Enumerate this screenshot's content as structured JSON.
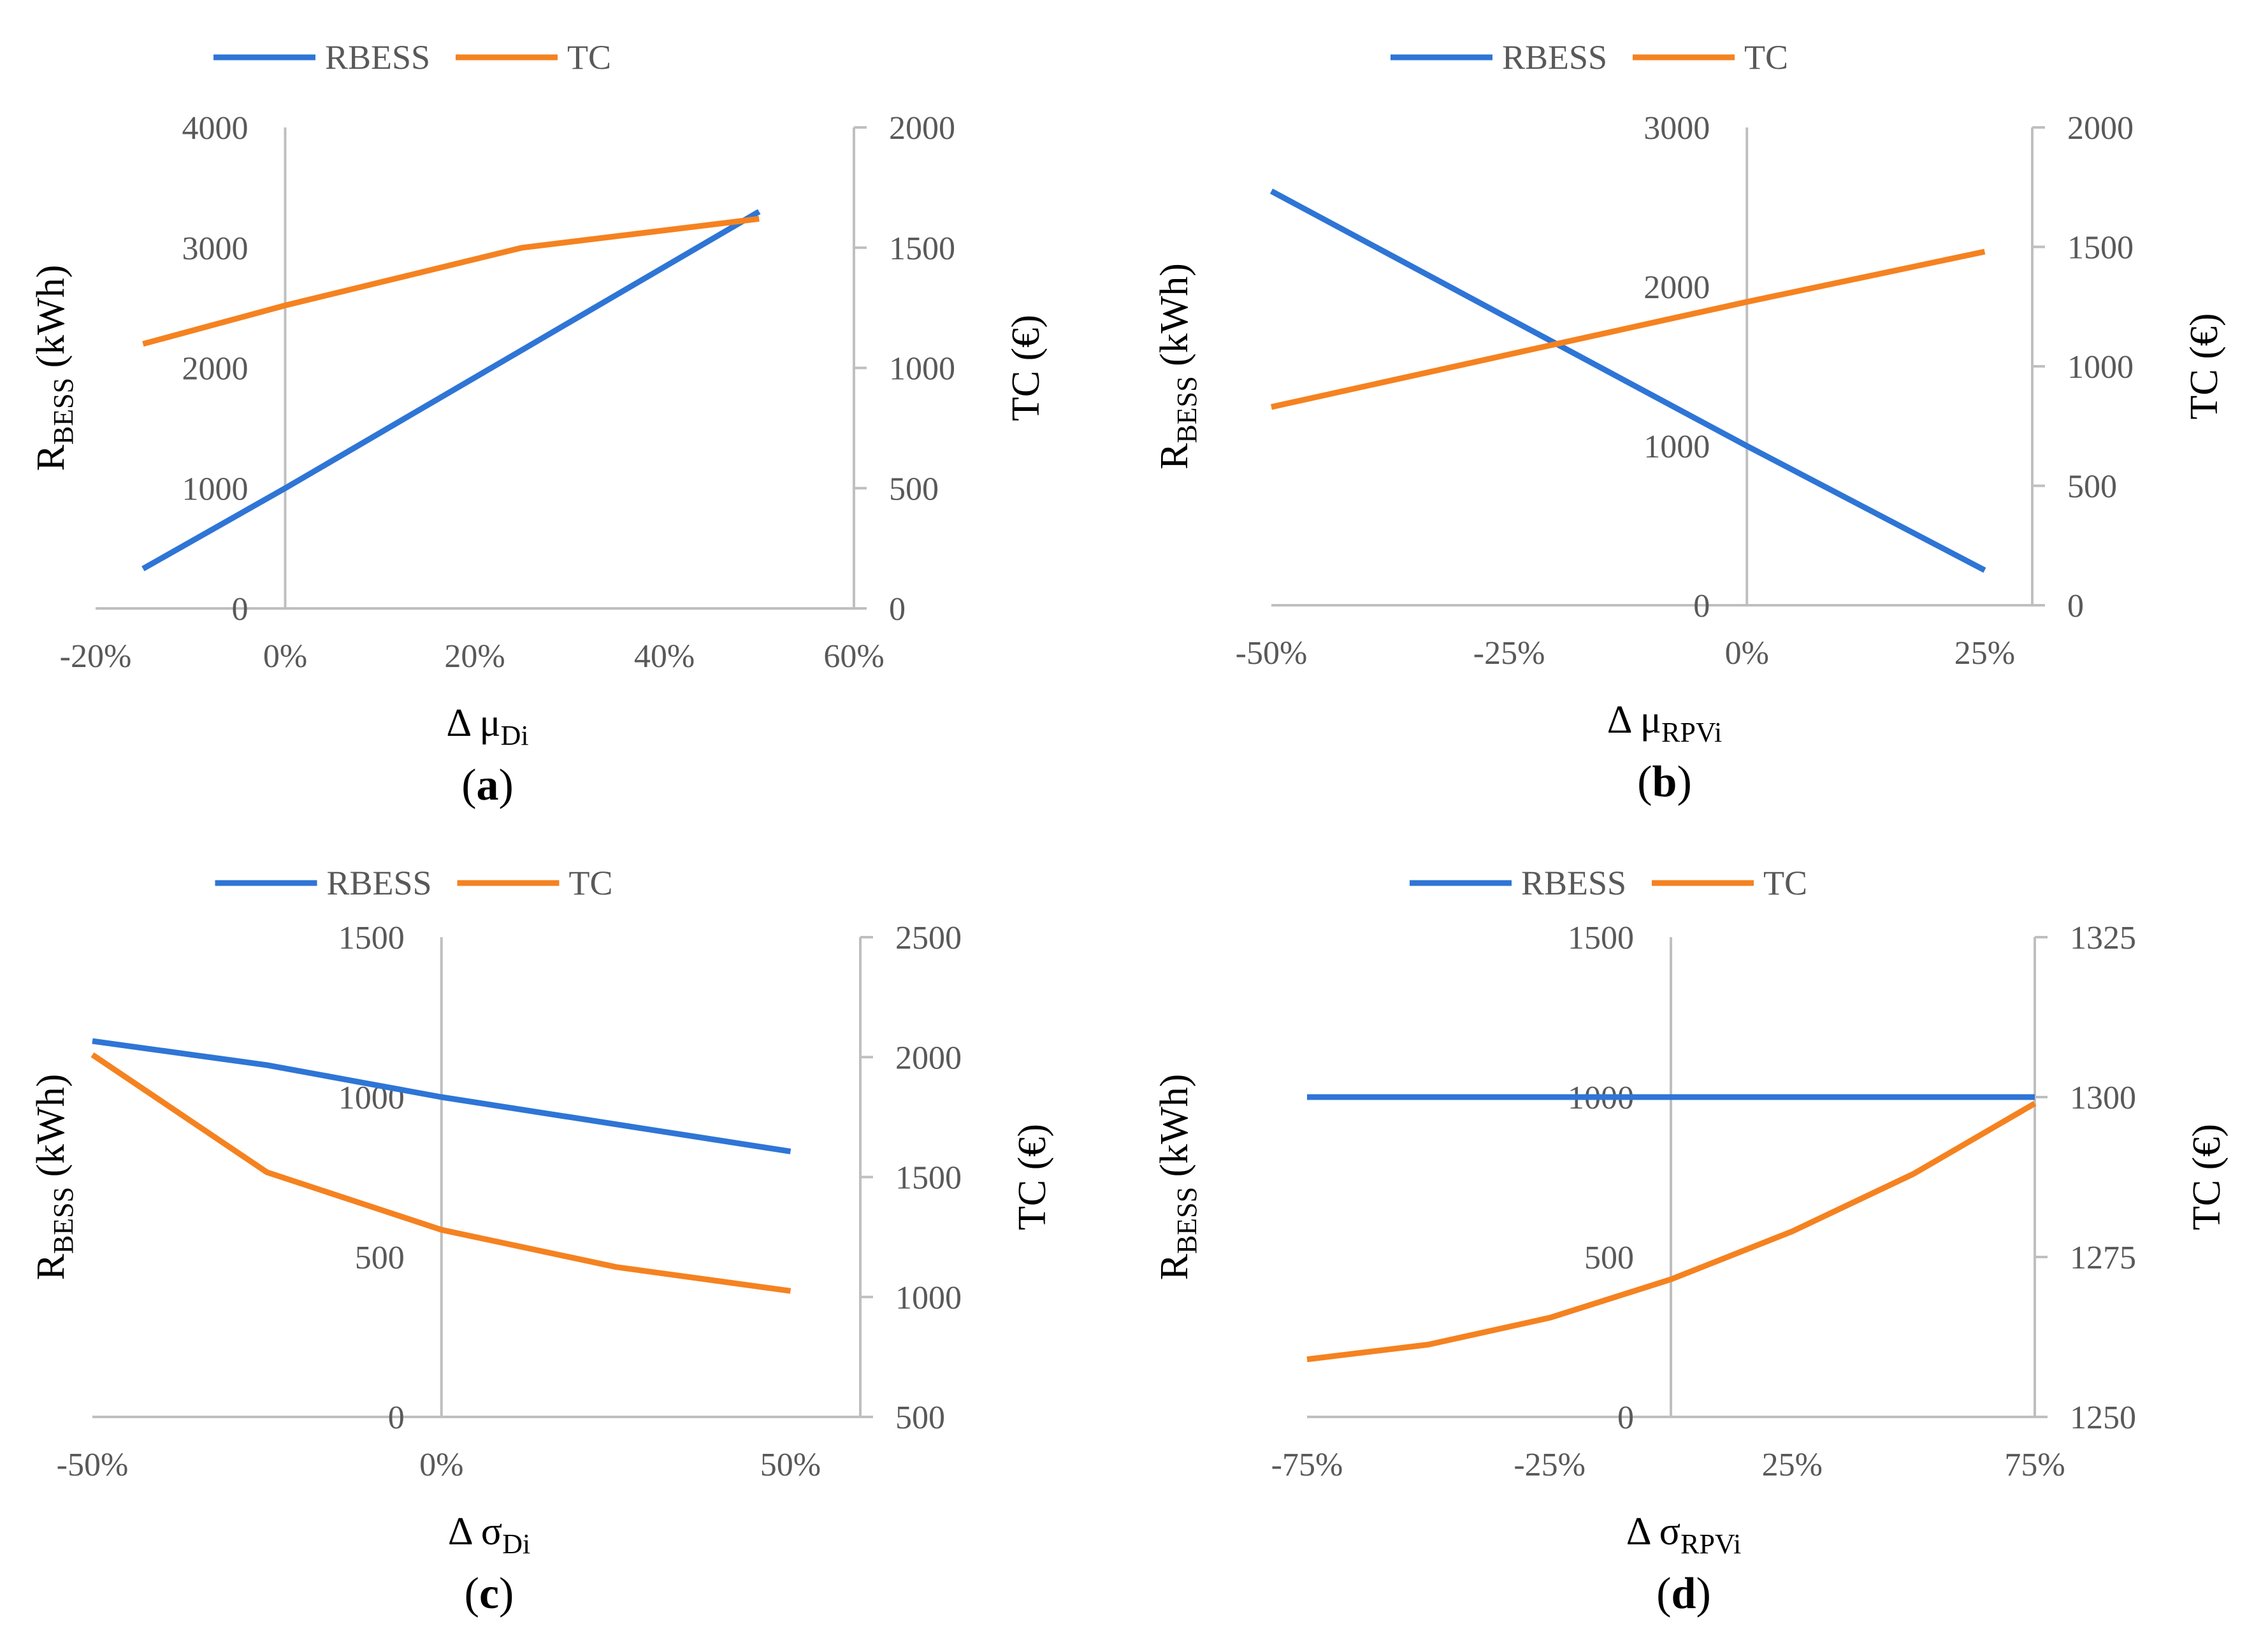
{
  "colors": {
    "rbess": "#2E75D6",
    "tc": "#F58220",
    "axis": "#BFBFBF",
    "text": "#595959"
  },
  "chart_data": [
    {
      "id": "a",
      "type": "line",
      "caption": "a",
      "legend": [
        "RBESS",
        "TC"
      ],
      "xlabel": {
        "prefix": "Δ μ",
        "sub": "Di"
      },
      "ylabel_left": {
        "main": "R",
        "sub": "BESS",
        "suffix": " (kWh)"
      },
      "ylabel_right": "TC (€)",
      "x_range": [
        -0.2,
        0.6
      ],
      "x_ticks": [
        -0.2,
        0,
        0.2,
        0.4,
        0.6
      ],
      "x_tick_labels": [
        "-20%",
        "0%",
        "20%",
        "40%",
        "60%"
      ],
      "left_ylim": [
        0,
        4000
      ],
      "left_ticks": [
        0,
        1000,
        2000,
        3000,
        4000
      ],
      "right_ylim": [
        0,
        2000
      ],
      "right_ticks": [
        0,
        500,
        1000,
        1500,
        2000
      ],
      "series": [
        {
          "name": "RBESS",
          "axis": "left",
          "x": [
            -0.15,
            0,
            0.25,
            0.5
          ],
          "values": [
            330,
            1000,
            2150,
            3300
          ]
        },
        {
          "name": "TC",
          "axis": "right",
          "x": [
            -0.15,
            0,
            0.25,
            0.5
          ],
          "values": [
            1100,
            1260,
            1500,
            1620
          ]
        }
      ]
    },
    {
      "id": "b",
      "type": "line",
      "caption": "b",
      "legend": [
        "RBESS",
        "TC"
      ],
      "xlabel": {
        "prefix": "Δ μ",
        "sub": "RPVi"
      },
      "ylabel_left": {
        "main": "R",
        "sub": "BESS",
        "suffix": " (kWh)"
      },
      "ylabel_right": "TC (€)",
      "x_range": [
        -0.5,
        0.3
      ],
      "x_ticks": [
        -0.5,
        -0.25,
        0,
        0.25
      ],
      "x_tick_labels": [
        "-50%",
        "-25%",
        "0%",
        "25%"
      ],
      "left_ylim": [
        0,
        3000
      ],
      "left_ticks": [
        0,
        1000,
        2000,
        3000
      ],
      "right_ylim": [
        0,
        2000
      ],
      "right_ticks": [
        0,
        500,
        1000,
        1500,
        2000
      ],
      "series": [
        {
          "name": "RBESS",
          "axis": "left",
          "x": [
            -0.5,
            0,
            0.25
          ],
          "values": [
            2600,
            1000,
            220
          ]
        },
        {
          "name": "TC",
          "axis": "right",
          "x": [
            -0.5,
            0,
            0.25
          ],
          "values": [
            830,
            1270,
            1480
          ]
        }
      ]
    },
    {
      "id": "c",
      "type": "line",
      "caption": "c",
      "legend": [
        "RBESS",
        "TC"
      ],
      "xlabel": {
        "prefix": "Δ σ",
        "sub": "Di"
      },
      "ylabel_left": {
        "main": "R",
        "sub": "BESS",
        "suffix": " (kWh)"
      },
      "ylabel_right": "TC (€)",
      "x_range": [
        -0.5,
        0.6
      ],
      "x_ticks": [
        -0.5,
        0,
        0.5
      ],
      "x_tick_labels": [
        "-50%",
        "0%",
        "50%"
      ],
      "left_ylim": [
        0,
        1500
      ],
      "left_ticks": [
        0,
        500,
        1000,
        1500
      ],
      "right_ylim": [
        500,
        2500
      ],
      "right_ticks": [
        500,
        1000,
        1500,
        2000,
        2500
      ],
      "series": [
        {
          "name": "RBESS",
          "axis": "left",
          "x": [
            -0.5,
            -0.25,
            -0.125,
            0,
            0.25,
            0.5
          ],
          "values": [
            1175,
            1100,
            1050,
            1000,
            915,
            830
          ]
        },
        {
          "name": "TC",
          "axis": "right",
          "x": [
            -0.5,
            -0.25,
            -0.125,
            0,
            0.25,
            0.5
          ],
          "values": [
            2010,
            1520,
            1400,
            1280,
            1125,
            1025
          ]
        }
      ]
    },
    {
      "id": "d",
      "type": "line",
      "caption": "d",
      "legend": [
        "RBESS",
        "TC"
      ],
      "xlabel": {
        "prefix": "Δ σ",
        "sub": "RPVi"
      },
      "ylabel_left": {
        "main": "R",
        "sub": "BESS",
        "suffix": " (kWh)"
      },
      "ylabel_right": "TC (€)",
      "x_range": [
        -0.75,
        0.75
      ],
      "x_ticks": [
        -0.75,
        -0.25,
        0.25,
        0.75
      ],
      "x_tick_labels": [
        "-75%",
        "-25%",
        "25%",
        "75%"
      ],
      "left_ylim": [
        0,
        1500
      ],
      "left_ticks": [
        0,
        500,
        1000,
        1500
      ],
      "right_ylim": [
        1250,
        1325
      ],
      "right_ticks": [
        1250,
        1275,
        1300,
        1325
      ],
      "series": [
        {
          "name": "RBESS",
          "axis": "left",
          "x": [
            -0.75,
            -0.5,
            -0.25,
            0,
            0.25,
            0.5,
            0.75
          ],
          "values": [
            1000,
            1000,
            1000,
            1000,
            1000,
            1000,
            1000
          ]
        },
        {
          "name": "TC",
          "axis": "right",
          "x": [
            -0.75,
            -0.5,
            -0.25,
            0,
            0.25,
            0.5,
            0.75
          ],
          "values": [
            1259,
            1261.3,
            1265.5,
            1271.5,
            1279,
            1288,
            1299
          ]
        }
      ]
    }
  ]
}
